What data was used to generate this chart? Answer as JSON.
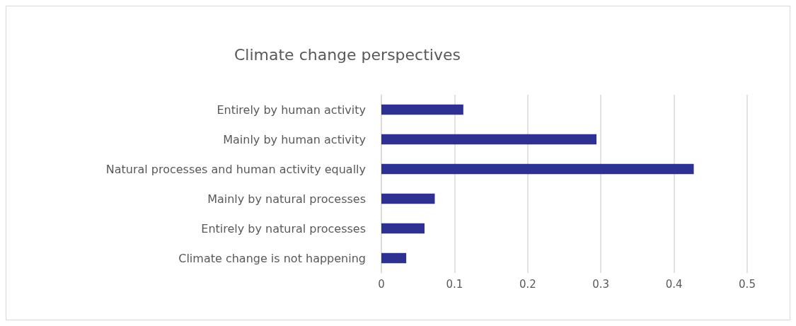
{
  "chart_data": {
    "type": "bar",
    "orientation": "horizontal",
    "title": "Climate change perspectives",
    "categories": [
      "Entirely by human activity",
      "Mainly by human activity",
      "Natural processes and human activity equally",
      "Mainly by natural processes",
      "Entirely by natural processes",
      "Climate change is not happening"
    ],
    "values": [
      0.112,
      0.294,
      0.427,
      0.073,
      0.059,
      0.034
    ],
    "color": "#2e3192",
    "xlim": [
      0,
      0.5
    ],
    "xticks": [
      0,
      0.1,
      0.2,
      0.3,
      0.4,
      0.5
    ],
    "grid": "x"
  }
}
